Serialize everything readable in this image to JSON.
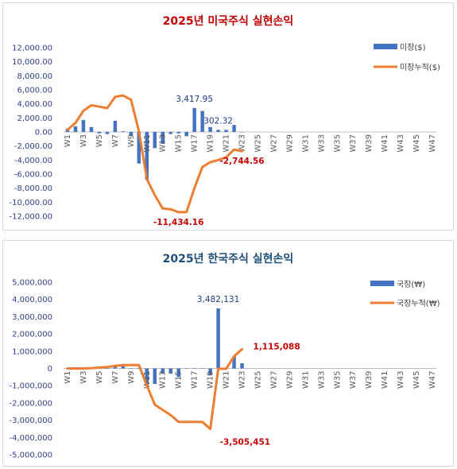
{
  "chart_data": [
    {
      "type": "bar",
      "title": "2025년 미국주식 실현손익",
      "title_color": "#c00000",
      "weeks": [
        "W1",
        "W2",
        "W3",
        "W4",
        "W5",
        "W6",
        "W7",
        "W8",
        "W9",
        "W10",
        "W11",
        "W12",
        "W13",
        "W14",
        "W15",
        "W16",
        "W17",
        "W18",
        "W19",
        "W20",
        "W21",
        "W22",
        "W23",
        "W24",
        "W25",
        "W26",
        "W27",
        "W28",
        "W29",
        "W30",
        "W31",
        "W32",
        "W33",
        "W34",
        "W35",
        "W36",
        "W37",
        "W38",
        "W39",
        "W40",
        "W41",
        "W42",
        "W43",
        "W44",
        "W45",
        "W46",
        "W47"
      ],
      "x_tick_labels": [
        "W1",
        "W3",
        "W5",
        "W7",
        "W9",
        "W11",
        "W13",
        "W15",
        "W17",
        "W19",
        "W21",
        "W23",
        "W25",
        "W27",
        "W29",
        "W31",
        "W33",
        "W35",
        "W37",
        "W39",
        "W41",
        "W43",
        "W45",
        "W47"
      ],
      "ylim": [
        -12000,
        12000
      ],
      "y_tick_labels": [
        "12,000.00",
        "10,000.00",
        "8,000.00",
        "6,000.00",
        "4,000.00",
        "2,000.00",
        "0.00",
        "-2,000.00",
        "-4,000.00",
        "-6,000.00",
        "-8,000.00",
        "-10,000.00",
        "-12,000.00"
      ],
      "y_ticks": [
        12000,
        10000,
        8000,
        6000,
        4000,
        2000,
        0,
        -2000,
        -4000,
        -6000,
        -8000,
        -10000,
        -12000
      ],
      "series": [
        {
          "name": "미장($)",
          "kind": "bar",
          "color": "#4472c4",
          "values": [
            500,
            800,
            1700,
            700,
            -200,
            -300,
            1600,
            100,
            -500,
            -4500,
            -6800,
            -2300,
            -1700,
            -300,
            -200,
            -600,
            3417.95,
            3000,
            700,
            302.32,
            300,
            1000,
            -50
          ]
        },
        {
          "name": "미장누적($)",
          "kind": "line",
          "color": "#ed7d31",
          "values": [
            300,
            1300,
            3000,
            3800,
            3600,
            3400,
            5000,
            5200,
            4600,
            100,
            -6700,
            -9000,
            -10900,
            -11000,
            -11434.16,
            -11400,
            -8000,
            -5000,
            -4300,
            -4000,
            -3600,
            -2500,
            -2744.56
          ]
        }
      ],
      "annotations": [
        {
          "text": "3,417.95",
          "week": "W17",
          "value": 3417.95,
          "style": "blue"
        },
        {
          "text": "302.32",
          "week": "W20",
          "value": 302.32,
          "style": "blue"
        },
        {
          "text": "-11,434.16",
          "week": "W15",
          "value": -11434.16,
          "style": "red"
        },
        {
          "text": "-2,744.56",
          "week": "W23",
          "value": -2744.56,
          "style": "red"
        }
      ],
      "legend_position": "top-right"
    },
    {
      "type": "bar",
      "title": "2025년 한국주식 실현손익",
      "title_color": "#1f4e79",
      "weeks": [
        "W1",
        "W2",
        "W3",
        "W4",
        "W5",
        "W6",
        "W7",
        "W8",
        "W9",
        "W10",
        "W11",
        "W12",
        "W13",
        "W14",
        "W15",
        "W16",
        "W17",
        "W18",
        "W19",
        "W20",
        "W21",
        "W22",
        "W23",
        "W24",
        "W25",
        "W26",
        "W27",
        "W28",
        "W29",
        "W30",
        "W31",
        "W32",
        "W33",
        "W34",
        "W35",
        "W36",
        "W37",
        "W38",
        "W39",
        "W40",
        "W41",
        "W42",
        "W43",
        "W44",
        "W45",
        "W46",
        "W47"
      ],
      "x_tick_labels": [
        "W1",
        "W3",
        "W5",
        "W7",
        "W9",
        "W11",
        "W13",
        "W15",
        "W17",
        "W19",
        "W21",
        "W23",
        "W25",
        "W27",
        "W29",
        "W31",
        "W33",
        "W35",
        "W37",
        "W39",
        "W41",
        "W43",
        "W45",
        "W47"
      ],
      "ylim": [
        -5000000,
        5000000
      ],
      "y_tick_labels": [
        "5,000,000",
        "4,000,000",
        "3,000,000",
        "2,000,000",
        "1,000,000",
        "0",
        "-1,000,000",
        "-2,000,000",
        "-3,000,000",
        "-4,000,000",
        "-5,000,000"
      ],
      "y_ticks": [
        5000000,
        4000000,
        3000000,
        2000000,
        1000000,
        0,
        -1000000,
        -2000000,
        -3000000,
        -4000000,
        -5000000
      ],
      "series": [
        {
          "name": "국장(₩)",
          "kind": "bar",
          "color": "#4472c4",
          "values": [
            0,
            0,
            20000,
            0,
            30000,
            0,
            100000,
            120000,
            0,
            0,
            -1000000,
            -900000,
            -300000,
            -300000,
            -500000,
            0,
            0,
            0,
            -400000,
            3482131,
            0,
            700000,
            300000
          ]
        },
        {
          "name": "국장누적(₩)",
          "kind": "line",
          "color": "#ed7d31",
          "values": [
            0,
            0,
            0,
            20000,
            50000,
            80000,
            150000,
            200000,
            200000,
            200000,
            -1000000,
            -2100000,
            -2400000,
            -2700000,
            -3100000,
            -3100000,
            -3100000,
            -3100000,
            -3505451,
            -20000,
            -20000,
            700000,
            1115088
          ]
        }
      ],
      "annotations": [
        {
          "text": "3,482,131",
          "week": "W20",
          "value": 3482131,
          "style": "blue"
        },
        {
          "text": "1,115,088",
          "week": "W23",
          "value": 1115088,
          "style": "red"
        },
        {
          "text": "-3,505,451",
          "week": "W19",
          "value": -3505451,
          "style": "red"
        }
      ],
      "legend_position": "top-right"
    }
  ]
}
